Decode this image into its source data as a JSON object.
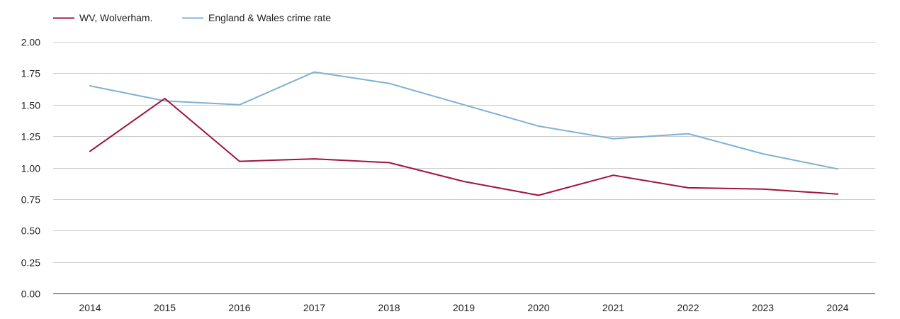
{
  "chart_data": {
    "type": "line",
    "title": "",
    "xlabel": "",
    "ylabel": "",
    "categories": [
      "2014",
      "2015",
      "2016",
      "2017",
      "2018",
      "2019",
      "2020",
      "2021",
      "2022",
      "2023",
      "2024"
    ],
    "ylim": [
      0,
      2
    ],
    "y_ticks": [
      "0.00",
      "0.25",
      "0.50",
      "0.75",
      "1.00",
      "1.25",
      "1.50",
      "1.75",
      "2.00"
    ],
    "grid": true,
    "legend_position": "top-left",
    "series": [
      {
        "name": "WV, Wolverham.",
        "color": "#a0143c",
        "values": [
          1.13,
          1.55,
          1.05,
          1.07,
          1.04,
          0.89,
          0.78,
          0.94,
          0.84,
          0.83,
          0.79
        ]
      },
      {
        "name": "England & Wales crime rate",
        "color": "#7fb0d3",
        "values": [
          1.65,
          1.53,
          1.5,
          1.76,
          1.67,
          1.5,
          1.33,
          1.23,
          1.27,
          1.11,
          0.99
        ]
      }
    ]
  }
}
